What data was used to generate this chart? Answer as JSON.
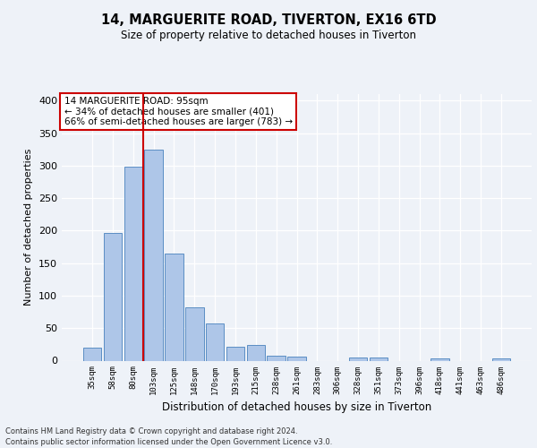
{
  "title1": "14, MARGUERITE ROAD, TIVERTON, EX16 6TD",
  "title2": "Size of property relative to detached houses in Tiverton",
  "xlabel": "Distribution of detached houses by size in Tiverton",
  "ylabel": "Number of detached properties",
  "bar_labels": [
    "35sqm",
    "58sqm",
    "80sqm",
    "103sqm",
    "125sqm",
    "148sqm",
    "170sqm",
    "193sqm",
    "215sqm",
    "238sqm",
    "261sqm",
    "283sqm",
    "306sqm",
    "328sqm",
    "351sqm",
    "373sqm",
    "396sqm",
    "418sqm",
    "441sqm",
    "463sqm",
    "486sqm"
  ],
  "bar_values": [
    20,
    197,
    298,
    325,
    165,
    82,
    57,
    22,
    24,
    8,
    6,
    0,
    0,
    5,
    5,
    0,
    0,
    3,
    0,
    0,
    3
  ],
  "bar_color": "#aec6e8",
  "bar_edge_color": "#5b8ec4",
  "vline_color": "#cc0000",
  "vline_x": 2.5,
  "annotation_title": "14 MARGUERITE ROAD: 95sqm",
  "annotation_line1": "← 34% of detached houses are smaller (401)",
  "annotation_line2": "66% of semi-detached houses are larger (783) →",
  "annotation_box_color": "#ffffff",
  "annotation_box_edge_color": "#cc0000",
  "ylim": [
    0,
    410
  ],
  "yticks": [
    0,
    50,
    100,
    150,
    200,
    250,
    300,
    350,
    400
  ],
  "footer1": "Contains HM Land Registry data © Crown copyright and database right 2024.",
  "footer2": "Contains public sector information licensed under the Open Government Licence v3.0.",
  "background_color": "#eef2f8"
}
